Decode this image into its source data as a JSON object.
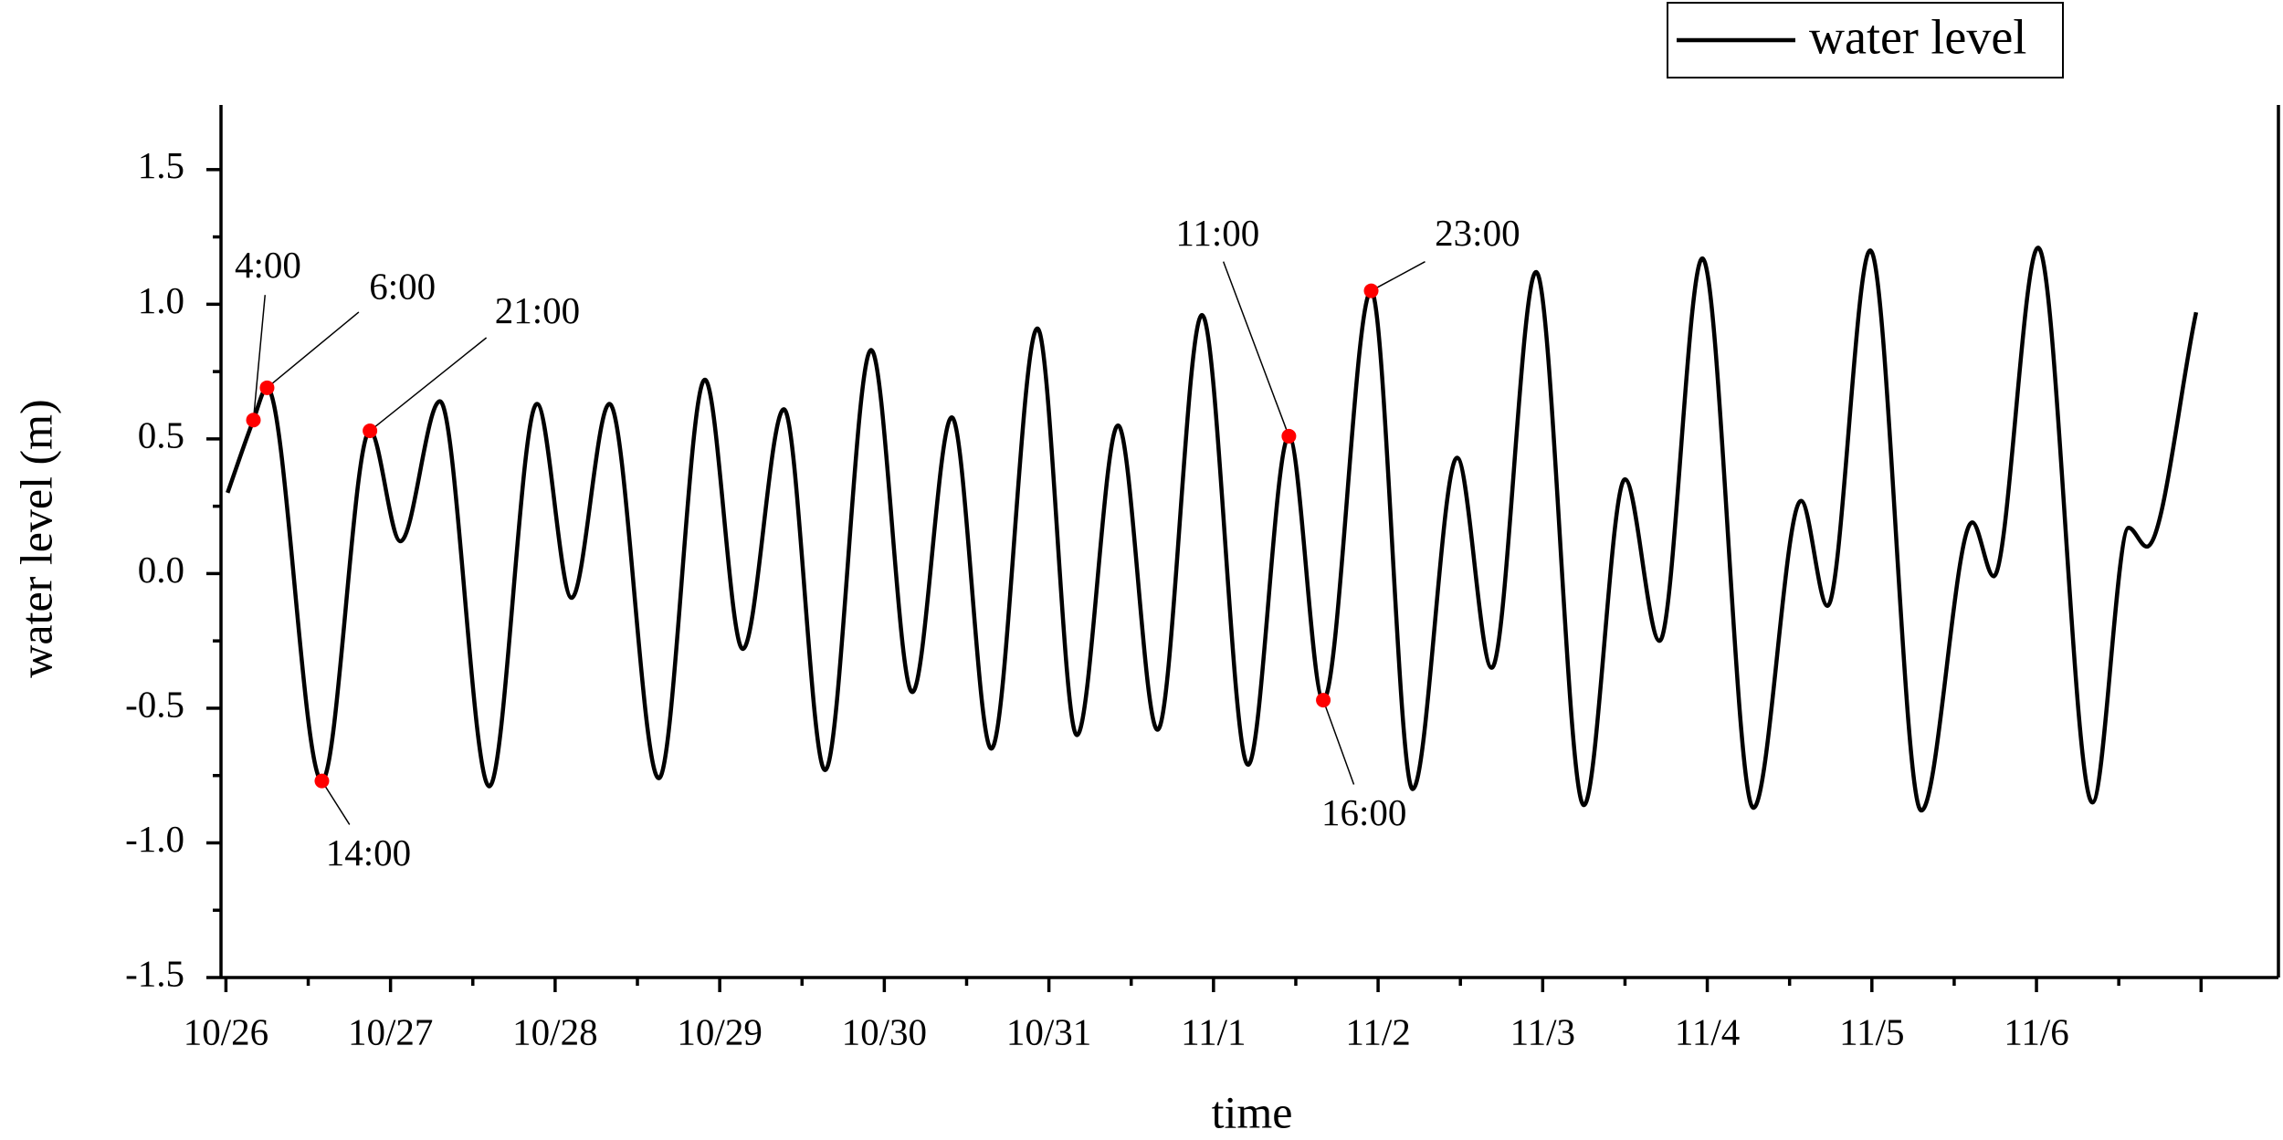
{
  "chart_data": {
    "type": "line",
    "title": null,
    "xlabel": "time",
    "ylabel": "water level (m)",
    "x": [
      0.01,
      0.167,
      0.25,
      0.583,
      0.875,
      1.06,
      1.3,
      1.6,
      1.89,
      2.1,
      2.33,
      2.63,
      2.91,
      3.14,
      3.39,
      3.64,
      3.92,
      4.17,
      4.41,
      4.65,
      4.93,
      5.17,
      5.42,
      5.66,
      5.93,
      6.21,
      6.458,
      6.667,
      6.958,
      7.21,
      7.48,
      7.69,
      7.96,
      8.25,
      8.5,
      8.71,
      8.97,
      9.28,
      9.57,
      9.73,
      9.99,
      10.3,
      10.61,
      10.74,
      11.01,
      11.34,
      11.56,
      11.67,
      11.97
    ],
    "series": [
      {
        "name": "water level",
        "color": "#000000",
        "values": [
          0.3,
          0.57,
          0.69,
          -0.77,
          0.53,
          0.12,
          0.64,
          -0.79,
          0.63,
          -0.09,
          0.63,
          -0.76,
          0.72,
          -0.28,
          0.61,
          -0.73,
          0.83,
          -0.44,
          0.58,
          -0.65,
          0.91,
          -0.6,
          0.55,
          -0.58,
          0.96,
          -0.71,
          0.51,
          -0.47,
          1.05,
          -0.8,
          0.43,
          -0.35,
          1.12,
          -0.86,
          0.35,
          -0.25,
          1.17,
          -0.87,
          0.27,
          -0.12,
          1.2,
          -0.88,
          0.19,
          -0.01,
          1.21,
          -0.85,
          0.17,
          0.1,
          0.97
        ]
      }
    ],
    "annotations": [
      {
        "label": "4:00",
        "x": 0.167,
        "y": 0.57,
        "color": "#ff0000"
      },
      {
        "label": "6:00",
        "x": 0.25,
        "y": 0.69,
        "color": "#ff0000"
      },
      {
        "label": "14:00",
        "x": 0.583,
        "y": -0.77,
        "color": "#ff0000"
      },
      {
        "label": "21:00",
        "x": 0.875,
        "y": 0.53,
        "color": "#ff0000"
      },
      {
        "label": "11:00",
        "x": 6.458,
        "y": 0.51,
        "color": "#ff0000"
      },
      {
        "label": "16:00",
        "x": 6.667,
        "y": -0.47,
        "color": "#ff0000"
      },
      {
        "label": "23:00",
        "x": 6.958,
        "y": 1.05,
        "color": "#ff0000"
      }
    ],
    "xlim": [
      -0.03,
      12.47
    ],
    "xticks": [
      {
        "value": 0,
        "label": "10/26"
      },
      {
        "value": 1,
        "label": "10/27"
      },
      {
        "value": 2,
        "label": "10/28"
      },
      {
        "value": 3,
        "label": "10/29"
      },
      {
        "value": 4,
        "label": "10/30"
      },
      {
        "value": 5,
        "label": "10/31"
      },
      {
        "value": 6,
        "label": "11/1"
      },
      {
        "value": 7,
        "label": "11/2"
      },
      {
        "value": 8,
        "label": "11/3"
      },
      {
        "value": 9,
        "label": "11/4"
      },
      {
        "value": 10,
        "label": "11/5"
      },
      {
        "value": 11,
        "label": "11/6"
      },
      {
        "value": 12,
        "label": null
      }
    ],
    "ylim": [
      -1.5,
      1.74
    ],
    "yticks": [
      -1.5,
      {
        "value": -1.0,
        "label": "-1.0"
      },
      -0.5,
      {
        "value": 0.0,
        "label": "0.0"
      },
      0.5,
      {
        "value": 1.0,
        "label": "1.0"
      },
      1.5
    ],
    "legend": "top-right",
    "grid": false
  }
}
